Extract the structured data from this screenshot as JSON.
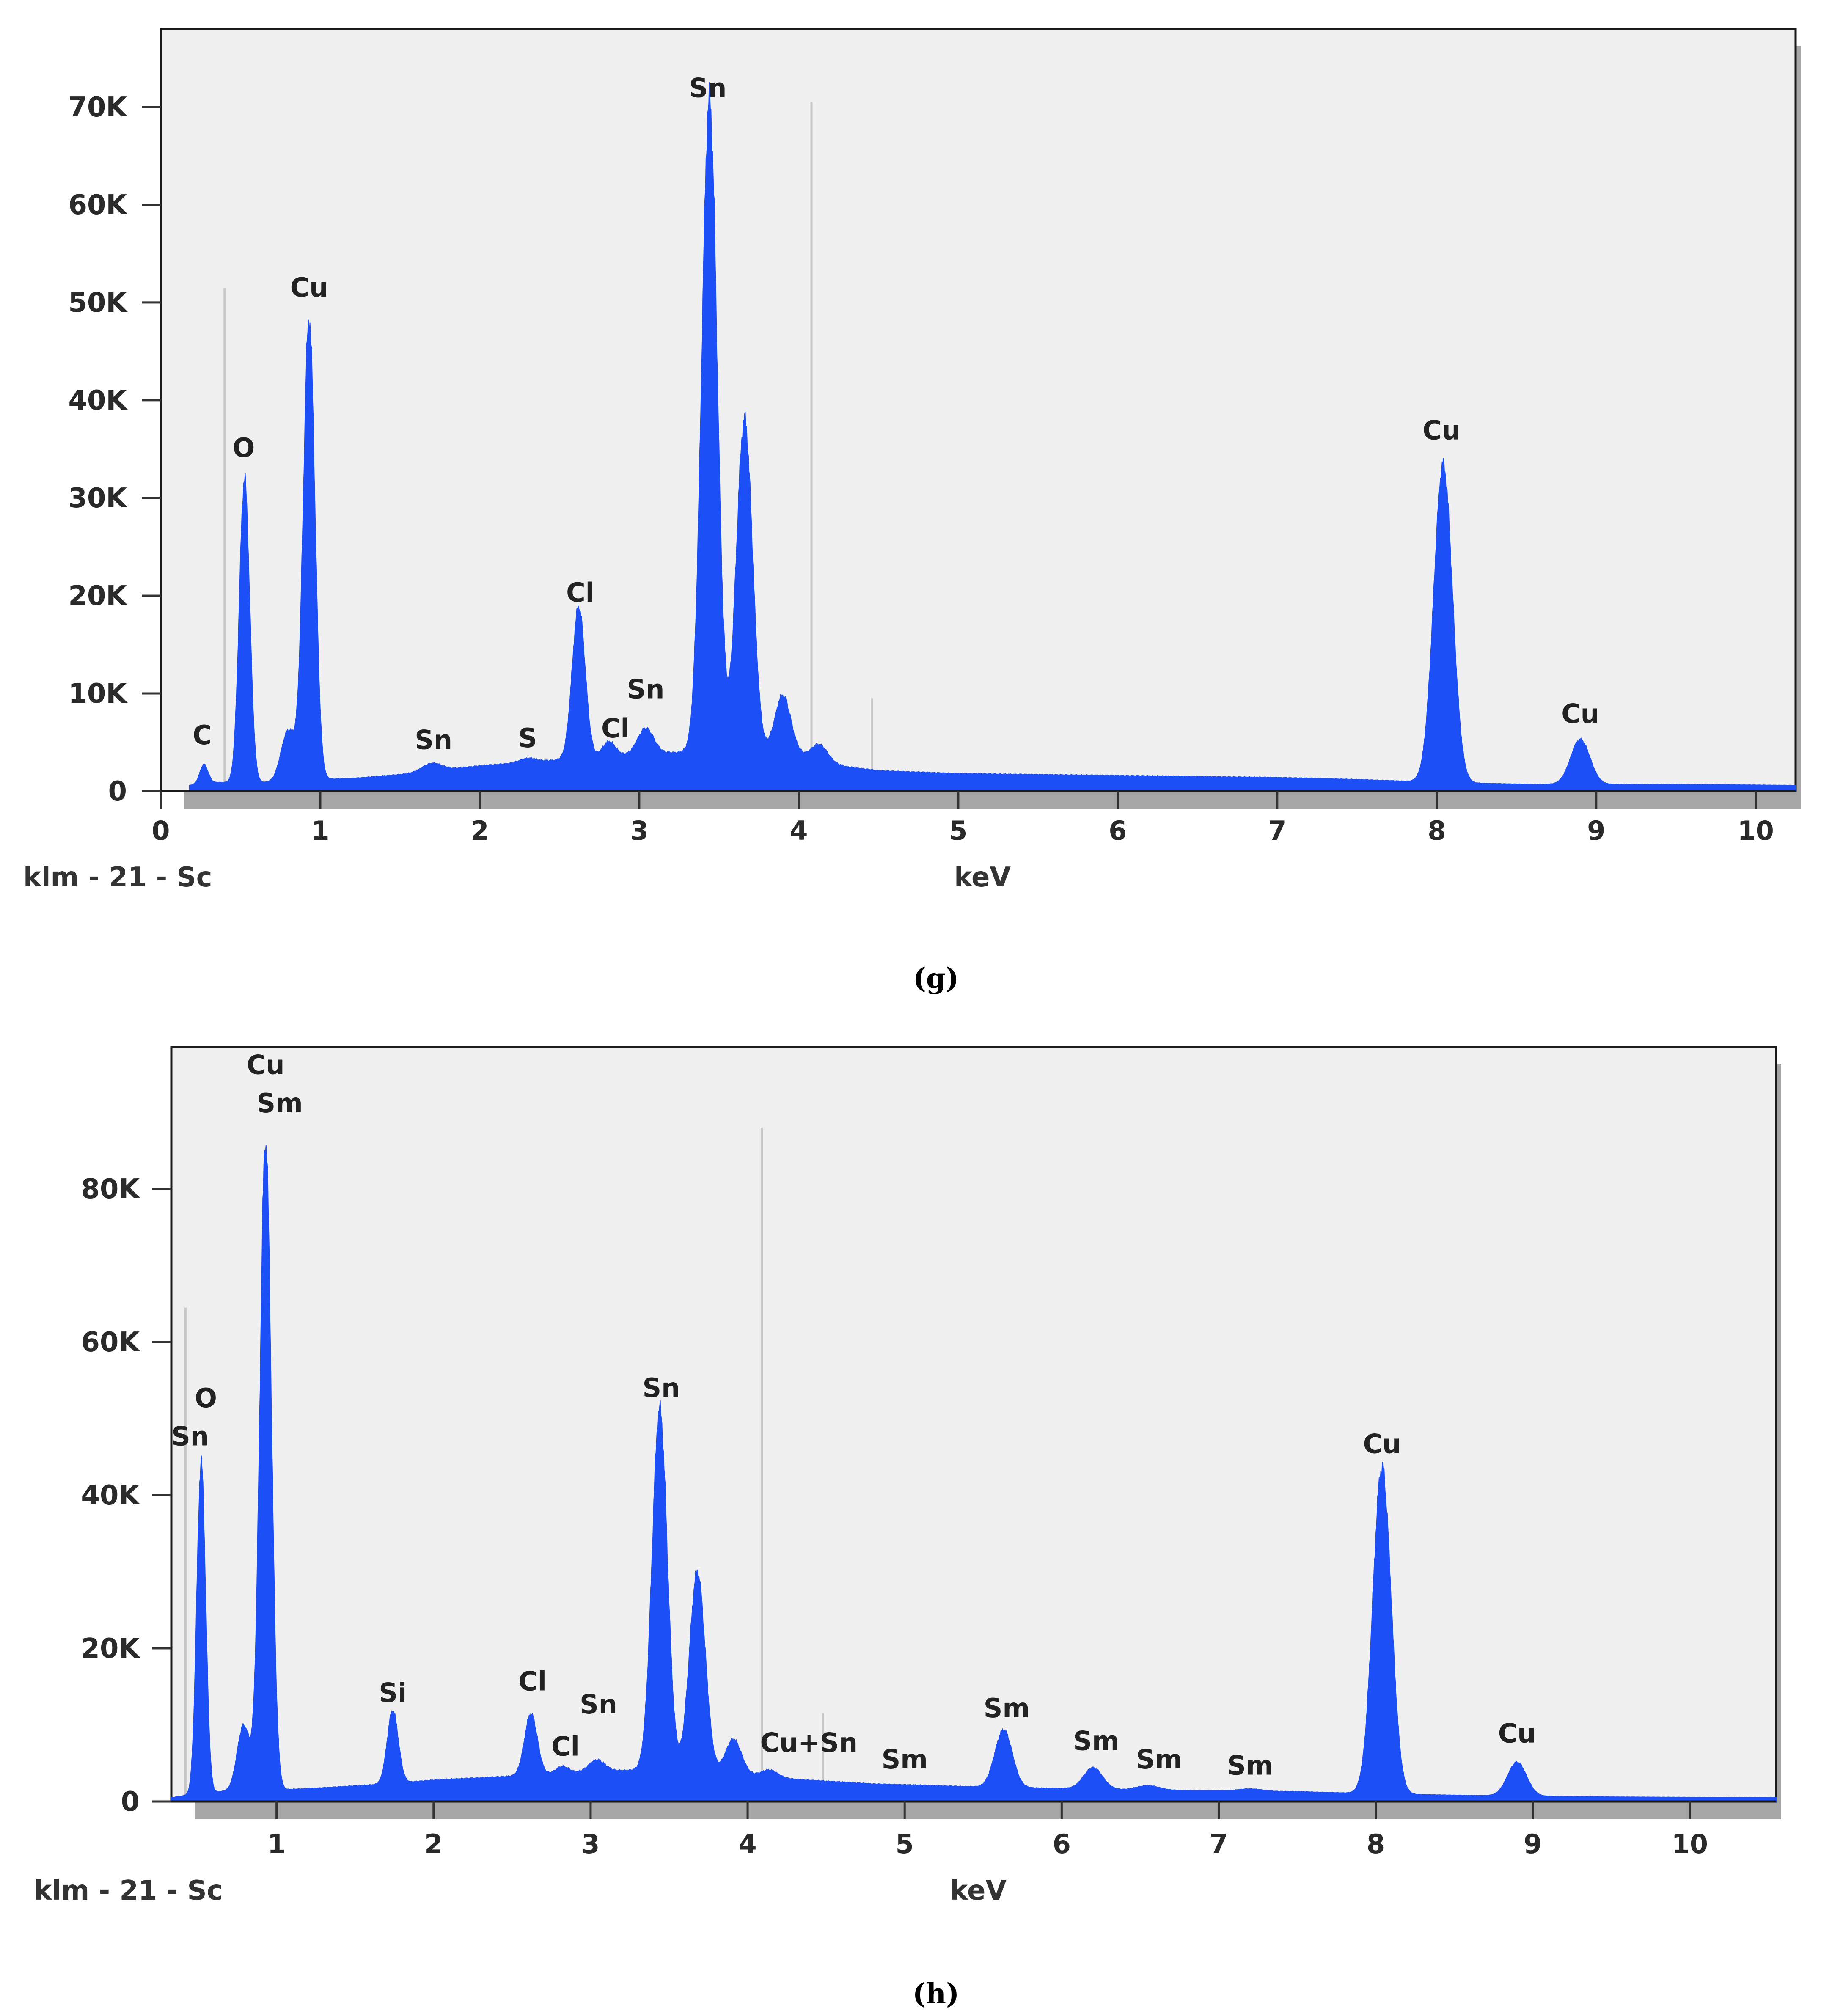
{
  "colors": {
    "spectrum": "#1c4ff5",
    "plot_background": "#f0f0f0",
    "frame": "#1a1a1a",
    "marker_line": "#c8c8c8",
    "shadow": "#a6a6a6"
  },
  "chart_data": [
    {
      "type": "area",
      "caption": "(g)",
      "xlabel": "keV",
      "sample_label": "klm - 21 - Sc",
      "xlim": [
        0,
        10.25
      ],
      "ylim": [
        0,
        78000
      ],
      "x_ticks": [
        0,
        1,
        2,
        3,
        4,
        5,
        6,
        7,
        8,
        9,
        10
      ],
      "y_ticks": [
        {
          "value": 0,
          "label": "0"
        },
        {
          "value": 10000,
          "label": "10K"
        },
        {
          "value": 20000,
          "label": "20K"
        },
        {
          "value": 30000,
          "label": "30K"
        },
        {
          "value": 40000,
          "label": "40K"
        },
        {
          "value": 50000,
          "label": "50K"
        },
        {
          "value": 60000,
          "label": "60K"
        },
        {
          "value": 70000,
          "label": "70K"
        }
      ],
      "grid": false,
      "background_curve": {
        "x": [
          0.18,
          0.3,
          0.45,
          0.7,
          1.0,
          1.2,
          1.5,
          2.0,
          2.5,
          3.0,
          3.3,
          3.6,
          4.0,
          4.3,
          4.5,
          5.0,
          6.0,
          7.0,
          7.5,
          8.0,
          8.6,
          9.0,
          9.5,
          10.25
        ],
        "y": [
          600,
          900,
          900,
          900,
          1200,
          1300,
          1700,
          2600,
          3200,
          3800,
          4000,
          4000,
          3700,
          2500,
          2100,
          1800,
          1600,
          1400,
          1200,
          900,
          700,
          700,
          700,
          600
        ]
      },
      "peaks": [
        {
          "x": 0.27,
          "y": 1900,
          "w": 0.025
        },
        {
          "x": 0.525,
          "y": 31000,
          "w": 0.032
        },
        {
          "x": 0.8,
          "y": 5200,
          "w": 0.045
        },
        {
          "x": 0.93,
          "y": 47000,
          "w": 0.036
        },
        {
          "x": 1.7,
          "y": 800,
          "w": 0.06
        },
        {
          "x": 2.3,
          "y": 400,
          "w": 0.05
        },
        {
          "x": 2.62,
          "y": 15500,
          "w": 0.04
        },
        {
          "x": 2.81,
          "y": 1500,
          "w": 0.04
        },
        {
          "x": 3.04,
          "y": 2600,
          "w": 0.05
        },
        {
          "x": 3.44,
          "y": 66500,
          "w": 0.048
        },
        {
          "x": 3.66,
          "y": 34000,
          "w": 0.05
        },
        {
          "x": 3.9,
          "y": 6000,
          "w": 0.05
        },
        {
          "x": 4.13,
          "y": 1600,
          "w": 0.05
        },
        {
          "x": 8.04,
          "y": 32500,
          "w": 0.058
        },
        {
          "x": 8.9,
          "y": 4600,
          "w": 0.06
        }
      ],
      "marker_lines": [
        {
          "x": 0.4,
          "y": 51500
        },
        {
          "x": 4.08,
          "y": 70500
        },
        {
          "x": 4.46,
          "y": 9500
        }
      ],
      "peak_labels": [
        {
          "x": 0.26,
          "y": 4800,
          "text": "C"
        },
        {
          "x": 0.52,
          "y": 34200,
          "text": "O"
        },
        {
          "x": 0.93,
          "y": 50600,
          "text": "Cu"
        },
        {
          "x": 1.71,
          "y": 4300,
          "text": "Sn"
        },
        {
          "x": 2.3,
          "y": 4500,
          "text": "S"
        },
        {
          "x": 2.63,
          "y": 19400,
          "text": "Cl"
        },
        {
          "x": 2.85,
          "y": 5500,
          "text": "Cl"
        },
        {
          "x": 3.04,
          "y": 9500,
          "text": "Sn"
        },
        {
          "x": 3.43,
          "y": 71000,
          "text": "Sn"
        },
        {
          "x": 8.03,
          "y": 36000,
          "text": "Cu"
        },
        {
          "x": 8.9,
          "y": 7000,
          "text": "Cu"
        }
      ]
    },
    {
      "type": "area",
      "caption": "(h)",
      "xlabel": "keV",
      "sample_label": "klm - 21 - Sc",
      "xlim": [
        0.33,
        10.55
      ],
      "ylim": [
        0,
        98500
      ],
      "x_ticks": [
        1,
        2,
        3,
        4,
        5,
        6,
        7,
        8,
        9,
        10
      ],
      "y_ticks": [
        {
          "value": 0,
          "label": "0"
        },
        {
          "value": 20000,
          "label": "20K"
        },
        {
          "value": 40000,
          "label": "40K"
        },
        {
          "value": 60000,
          "label": "60K"
        },
        {
          "value": 80000,
          "label": "80K"
        }
      ],
      "grid": false,
      "background_curve": {
        "x": [
          0.33,
          0.45,
          0.7,
          1.0,
          1.3,
          1.7,
          2.0,
          2.5,
          3.0,
          3.3,
          3.6,
          4.0,
          4.3,
          4.8,
          5.5,
          6.5,
          7.5,
          8.0,
          8.6,
          9.0,
          9.5,
          10.55
        ],
        "y": [
          500,
          900,
          1400,
          1500,
          1800,
          2300,
          2800,
          3300,
          3900,
          4100,
          4000,
          3500,
          2900,
          2300,
          1900,
          1500,
          1300,
          1000,
          800,
          700,
          600,
          500
        ]
      },
      "peaks": [
        {
          "x": 0.52,
          "y": 43000,
          "w": 0.028
        },
        {
          "x": 0.79,
          "y": 8500,
          "w": 0.04
        },
        {
          "x": 0.93,
          "y": 84500,
          "w": 0.036
        },
        {
          "x": 1.74,
          "y": 9500,
          "w": 0.035
        },
        {
          "x": 2.62,
          "y": 8000,
          "w": 0.04
        },
        {
          "x": 2.82,
          "y": 900,
          "w": 0.04
        },
        {
          "x": 3.04,
          "y": 1500,
          "w": 0.05
        },
        {
          "x": 3.44,
          "y": 47000,
          "w": 0.048
        },
        {
          "x": 3.68,
          "y": 26000,
          "w": 0.05
        },
        {
          "x": 3.91,
          "y": 4500,
          "w": 0.05
        },
        {
          "x": 4.14,
          "y": 900,
          "w": 0.05
        },
        {
          "x": 5.63,
          "y": 7500,
          "w": 0.055
        },
        {
          "x": 6.2,
          "y": 2800,
          "w": 0.06
        },
        {
          "x": 6.55,
          "y": 600,
          "w": 0.07
        },
        {
          "x": 7.2,
          "y": 300,
          "w": 0.07
        },
        {
          "x": 8.04,
          "y": 42500,
          "w": 0.058
        },
        {
          "x": 8.9,
          "y": 4400,
          "w": 0.06
        }
      ],
      "marker_lines": [
        {
          "x": 0.42,
          "y": 64500
        },
        {
          "x": 4.09,
          "y": 88000
        },
        {
          "x": 4.48,
          "y": 11500
        }
      ],
      "peak_labels": [
        {
          "x": 0.93,
          "y": 95000,
          "text": "Cu"
        },
        {
          "x": 1.02,
          "y": 90000,
          "text": "Sm"
        },
        {
          "x": 0.55,
          "y": 51500,
          "text": "O"
        },
        {
          "x": 0.45,
          "y": 46500,
          "text": "Sn"
        },
        {
          "x": 1.74,
          "y": 13000,
          "text": "Si"
        },
        {
          "x": 2.63,
          "y": 14500,
          "text": "Cl"
        },
        {
          "x": 2.84,
          "y": 6000,
          "text": "Cl"
        },
        {
          "x": 3.05,
          "y": 11500,
          "text": "Sn"
        },
        {
          "x": 3.45,
          "y": 52800,
          "text": "Sn"
        },
        {
          "x": 4.39,
          "y": 6500,
          "text": "Cu+Sn"
        },
        {
          "x": 5.0,
          "y": 4300,
          "text": "Sm"
        },
        {
          "x": 5.65,
          "y": 11000,
          "text": "Sm"
        },
        {
          "x": 6.22,
          "y": 6700,
          "text": "Sm"
        },
        {
          "x": 6.62,
          "y": 4300,
          "text": "Sm"
        },
        {
          "x": 7.2,
          "y": 3500,
          "text": "Sm"
        },
        {
          "x": 8.04,
          "y": 45500,
          "text": "Cu"
        },
        {
          "x": 8.9,
          "y": 7700,
          "text": "Cu"
        }
      ]
    }
  ]
}
